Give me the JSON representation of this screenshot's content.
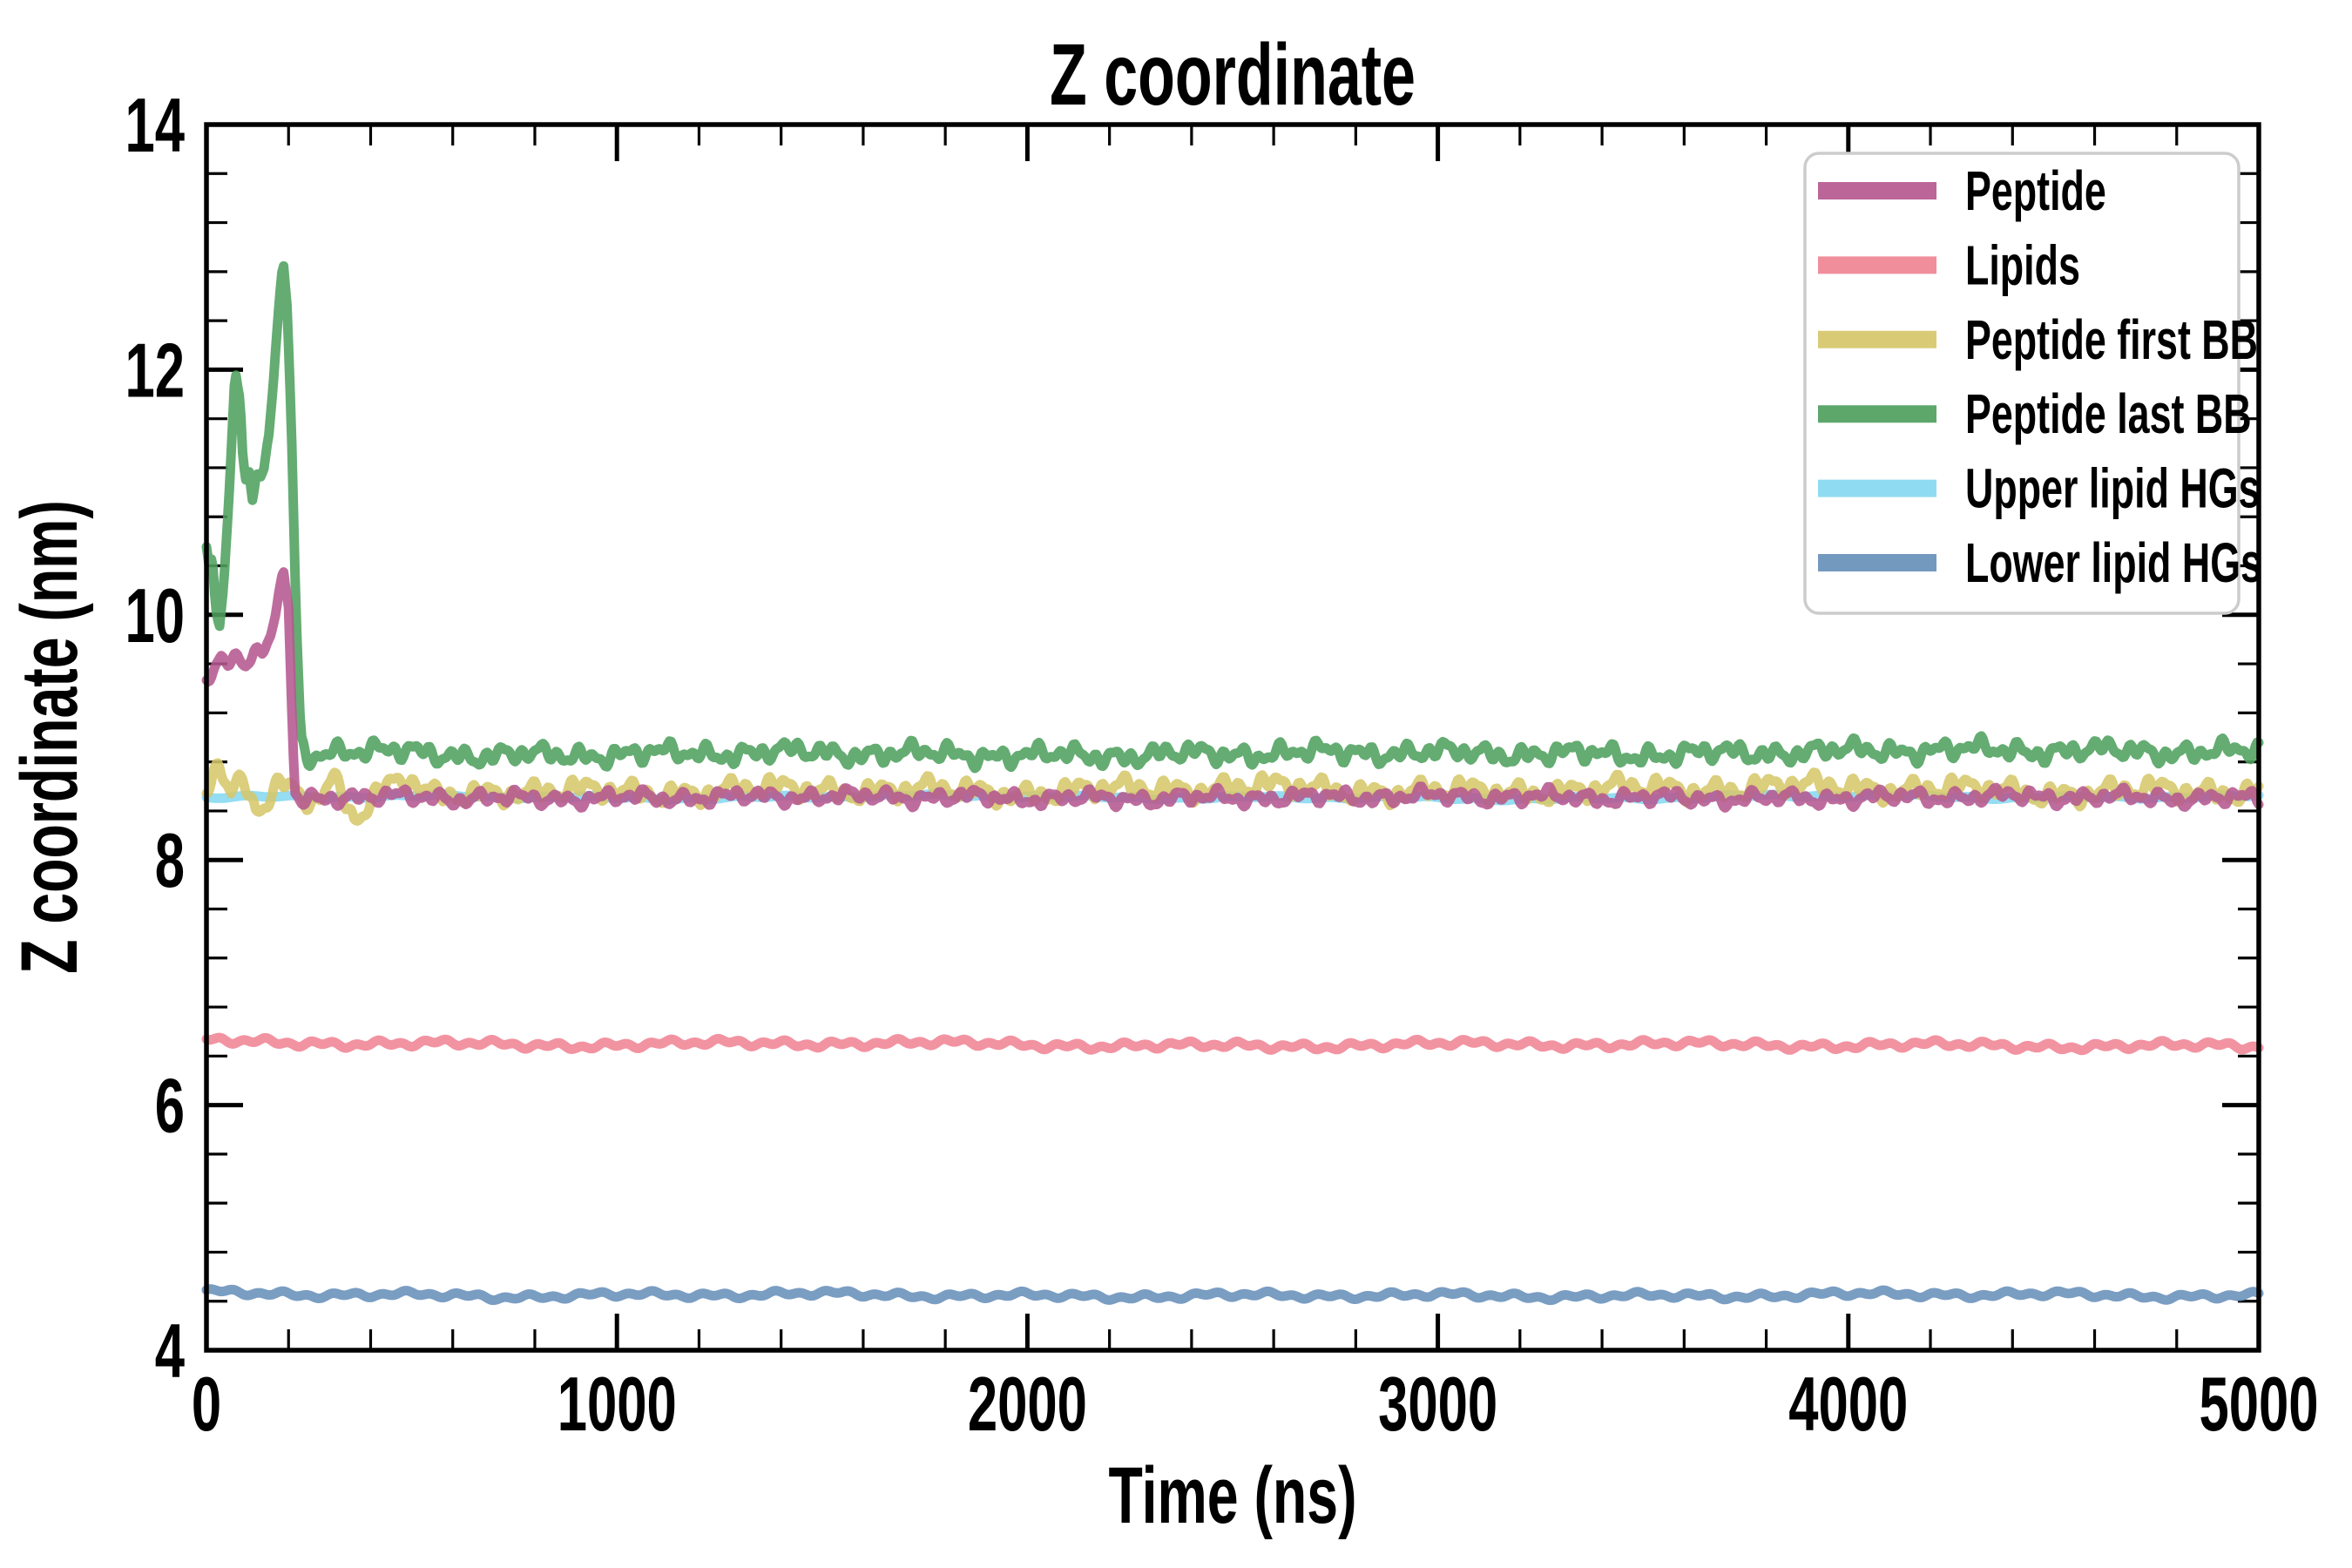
{
  "chart_data": {
    "type": "line",
    "title": "Z coordinate",
    "xlabel": "Time (ns)",
    "ylabel": "Z coordinate (nm)",
    "xlim": [
      0,
      5000
    ],
    "ylim": [
      4,
      14
    ],
    "x_major_ticks": [
      0,
      1000,
      2000,
      3000,
      4000,
      5000
    ],
    "x_minor_step": 200,
    "y_major_ticks": [
      4,
      6,
      8,
      10,
      12,
      14
    ],
    "y_minor_step": 0.4,
    "grid": false,
    "background": "#ffffff",
    "axis_color": "#000000",
    "legend": {
      "position": "upper right",
      "border_color": "#cccccc",
      "fill": "#ffffff"
    },
    "series": [
      {
        "name": "Peptide",
        "color": "#b5588f",
        "seed": 11,
        "noise_amp": 0.09,
        "noise_components": [
          [
            26,
            0.18
          ],
          [
            45,
            0.32
          ],
          [
            100,
            0.3
          ],
          [
            280,
            0.2
          ]
        ],
        "anchors": [
          [
            0,
            9.5
          ],
          [
            20,
            9.6
          ],
          [
            35,
            9.68
          ],
          [
            50,
            9.6
          ],
          [
            65,
            9.66
          ],
          [
            80,
            9.62
          ],
          [
            95,
            9.6
          ],
          [
            115,
            9.72
          ],
          [
            135,
            9.7
          ],
          [
            155,
            9.78
          ],
          [
            170,
            9.95
          ],
          [
            187,
            10.4
          ],
          [
            200,
            10.05
          ],
          [
            207,
            9.3
          ],
          [
            215,
            8.55
          ],
          [
            230,
            8.48
          ],
          [
            300,
            8.52
          ],
          [
            800,
            8.5
          ],
          [
            1500,
            8.52
          ],
          [
            2200,
            8.5
          ],
          [
            3000,
            8.52
          ],
          [
            3800,
            8.5
          ],
          [
            4400,
            8.52
          ],
          [
            5000,
            8.5
          ]
        ]
      },
      {
        "name": "Lipids",
        "color": "#f08494",
        "seed": 22,
        "noise_amp": 0.045,
        "noise_components": [
          [
            55,
            0.35
          ],
          [
            140,
            0.35
          ],
          [
            600,
            0.3
          ]
        ],
        "anchors": [
          [
            0,
            6.52
          ],
          [
            800,
            6.49
          ],
          [
            1600,
            6.51
          ],
          [
            2400,
            6.48
          ],
          [
            3200,
            6.5
          ],
          [
            4000,
            6.49
          ],
          [
            5000,
            6.48
          ]
        ]
      },
      {
        "name": "Peptide first BB",
        "color": "#d6c76a",
        "seed": 33,
        "noise_amp": 0.14,
        "noise_components": [
          [
            30,
            0.2
          ],
          [
            48,
            0.3
          ],
          [
            120,
            0.3
          ],
          [
            420,
            0.2
          ]
        ],
        "anchors": [
          [
            0,
            8.62
          ],
          [
            30,
            8.78
          ],
          [
            60,
            8.5
          ],
          [
            90,
            8.62
          ],
          [
            120,
            8.38
          ],
          [
            150,
            8.48
          ],
          [
            180,
            8.62
          ],
          [
            220,
            8.55
          ],
          [
            260,
            8.5
          ],
          [
            310,
            8.68
          ],
          [
            360,
            8.35
          ],
          [
            420,
            8.55
          ],
          [
            480,
            8.65
          ],
          [
            560,
            8.5
          ],
          [
            700,
            8.57
          ],
          [
            1000,
            8.55
          ],
          [
            1500,
            8.58
          ],
          [
            2000,
            8.55
          ],
          [
            2500,
            8.6
          ],
          [
            3000,
            8.55
          ],
          [
            3500,
            8.58
          ],
          [
            4000,
            8.6
          ],
          [
            4500,
            8.55
          ],
          [
            5000,
            8.57
          ]
        ]
      },
      {
        "name": "Peptide last BB",
        "color": "#4fa05e",
        "seed": 44,
        "noise_amp": 0.12,
        "noise_components": [
          [
            28,
            0.2
          ],
          [
            45,
            0.3
          ],
          [
            100,
            0.3
          ],
          [
            320,
            0.2
          ]
        ],
        "anchors": [
          [
            0,
            10.55
          ],
          [
            8,
            10.3
          ],
          [
            14,
            10.45
          ],
          [
            22,
            10.1
          ],
          [
            32,
            9.93
          ],
          [
            42,
            10.2
          ],
          [
            55,
            11.0
          ],
          [
            70,
            12.05
          ],
          [
            82,
            11.8
          ],
          [
            88,
            11.3
          ],
          [
            95,
            11.0
          ],
          [
            103,
            11.15
          ],
          [
            112,
            10.93
          ],
          [
            122,
            11.1
          ],
          [
            130,
            11.05
          ],
          [
            140,
            11.15
          ],
          [
            152,
            11.45
          ],
          [
            168,
            12.2
          ],
          [
            187,
            12.85
          ],
          [
            197,
            12.5
          ],
          [
            207,
            11.5
          ],
          [
            218,
            10.0
          ],
          [
            230,
            8.95
          ],
          [
            245,
            8.85
          ],
          [
            300,
            8.9
          ],
          [
            700,
            8.85
          ],
          [
            1400,
            8.88
          ],
          [
            2100,
            8.85
          ],
          [
            2800,
            8.88
          ],
          [
            3500,
            8.86
          ],
          [
            4200,
            8.9
          ],
          [
            5000,
            8.88
          ]
        ]
      },
      {
        "name": "Upper lipid HGs",
        "color": "#85d8f1",
        "seed": 55,
        "noise_amp": 0.022,
        "noise_components": [
          [
            120,
            0.35
          ],
          [
            400,
            0.35
          ],
          [
            1100,
            0.3
          ]
        ],
        "anchors": [
          [
            0,
            8.52
          ],
          [
            1000,
            8.51
          ],
          [
            2000,
            8.52
          ],
          [
            3000,
            8.5
          ],
          [
            4000,
            8.52
          ],
          [
            5000,
            8.51
          ]
        ]
      },
      {
        "name": "Lower lipid HGs",
        "color": "#6890ba",
        "seed": 66,
        "noise_amp": 0.038,
        "noise_components": [
          [
            60,
            0.35
          ],
          [
            150,
            0.35
          ],
          [
            500,
            0.3
          ]
        ],
        "anchors": [
          [
            0,
            4.47
          ],
          [
            700,
            4.44
          ],
          [
            1400,
            4.46
          ],
          [
            2100,
            4.44
          ],
          [
            2800,
            4.45
          ],
          [
            3500,
            4.44
          ],
          [
            4200,
            4.46
          ],
          [
            5000,
            4.44
          ]
        ]
      }
    ]
  }
}
